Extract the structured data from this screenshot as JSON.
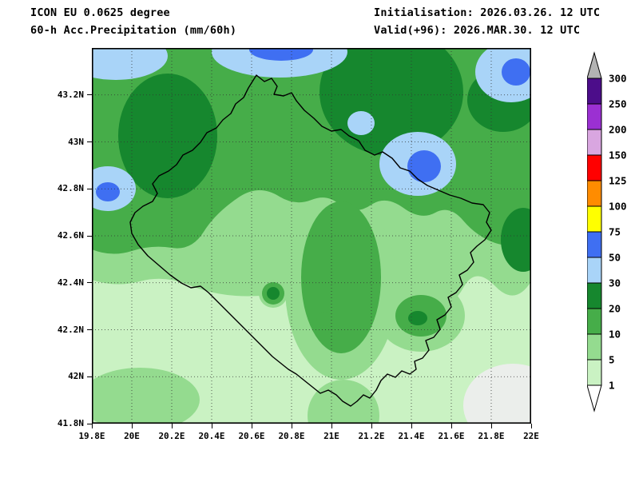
{
  "header": {
    "model": "ICON EU 0.0625 degree",
    "product": "60-h Acc.Precipitation (mm/60h)",
    "initialisation": "Initialisation: 2026.03.26. 12 UTC",
    "valid": "Valid(+96): 2026.MAR.30. 12 UTC"
  },
  "axes": {
    "lat_ticks": [
      "43.2N",
      "43N",
      "42.8N",
      "42.6N",
      "42.4N",
      "42.2N",
      "42N",
      "41.8N"
    ],
    "lon_ticks": [
      "19.8E",
      "20E",
      "20.2E",
      "20.4E",
      "20.6E",
      "20.8E",
      "21E",
      "21.2E",
      "21.4E",
      "21.6E",
      "21.8E",
      "22E"
    ]
  },
  "colorbar": {
    "boundary_labels": [
      "300",
      "250",
      "200",
      "150",
      "125",
      "100",
      "75",
      "50",
      "30",
      "20",
      "10",
      "5",
      "1"
    ],
    "cell_colors_top_to_bottom": [
      "#4c0d8a",
      "#9b30d2",
      "#d9a6e0",
      "#ff0000",
      "#ff8c00",
      "#ffff00",
      "#3f6ff2",
      "#a9d4f8",
      "#16872e",
      "#46ad49",
      "#94db8f",
      "#caf2c3"
    ],
    "above_max_color": "#b3b3b3",
    "below_min_color": "#ffffff",
    "units": "mm/60h"
  },
  "chart_data": {
    "type": "heatmap",
    "title": "60-h Acc.Precipitation (mm/60h)",
    "model": "ICON EU 0.0625 degree",
    "initialisation": "2026.03.26. 12 UTC",
    "valid": "(+96) 2026.MAR.30. 12 UTC",
    "x_ticks": [
      "19.8E",
      "20E",
      "20.2E",
      "20.4E",
      "20.6E",
      "20.8E",
      "21E",
      "21.2E",
      "21.4E",
      "21.6E",
      "21.8E",
      "22E"
    ],
    "y_ticks": [
      "41.8N",
      "42N",
      "42.2N",
      "42.4N",
      "42.6N",
      "42.8N",
      "43N",
      "43.2N"
    ],
    "levels_mm": [
      1,
      5,
      10,
      20,
      30,
      50,
      75,
      100,
      125,
      150,
      200,
      250,
      300
    ],
    "legend_position": "right",
    "grid": "dotted 0.2-degree graticule",
    "region_outline": "country border polygon (Kosovo area, 19.8E-22E / 41.8N-43.4N)",
    "field_summary": [
      {
        "area": "northern third of domain",
        "value_mm": "10-20"
      },
      {
        "area": "patches inside northern band (NW, north-center, NE and E edges)",
        "value_mm": "20-30"
      },
      {
        "area": "along north edge, NE corner, east-central blob, west edge",
        "value_mm": "30-50"
      },
      {
        "area": "small cores inside those blue areas",
        "value_mm": "50-75"
      },
      {
        "area": "central elongated blob and SE blob",
        "value_mm": "10-20"
      },
      {
        "area": "rings around central features and mid-domain band",
        "value_mm": "5-10"
      },
      {
        "area": "southern half background",
        "value_mm": "1-5"
      },
      {
        "area": "SE corner of domain",
        "value_mm": "<1"
      }
    ]
  }
}
